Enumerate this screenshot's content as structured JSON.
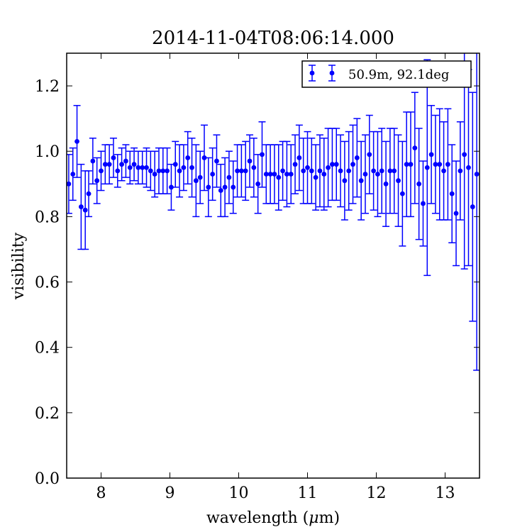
{
  "chart_data": {
    "type": "scatter",
    "title": "2014-11-04T08:06:14.000",
    "xlabel_text": "wavelength (",
    "xlabel_symbol": "μ",
    "xlabel_unit": "m)",
    "ylabel": "visibility",
    "xlim": [
      7.5,
      13.5
    ],
    "ylim": [
      0.0,
      1.3
    ],
    "xticks": [
      8,
      9,
      10,
      11,
      12,
      13
    ],
    "yticks": [
      0.0,
      0.2,
      0.4,
      0.6,
      0.8,
      1.0,
      1.2
    ],
    "xtick_labels": [
      "8",
      "9",
      "10",
      "11",
      "12",
      "13"
    ],
    "ytick_labels": [
      "0.0",
      "0.2",
      "0.4",
      "0.6",
      "0.8",
      "1.0",
      "1.2"
    ],
    "grid": false,
    "legend_position": "top-right",
    "color": "#0000ff",
    "series": [
      {
        "name": "50.9m, 92.1deg",
        "x": [
          7.53,
          7.59,
          7.65,
          7.71,
          7.77,
          7.82,
          7.88,
          7.94,
          8.0,
          8.06,
          8.12,
          8.18,
          8.24,
          8.3,
          8.36,
          8.42,
          8.48,
          8.54,
          8.6,
          8.66,
          8.72,
          8.78,
          8.84,
          8.9,
          8.96,
          9.02,
          9.08,
          9.14,
          9.2,
          9.26,
          9.32,
          9.38,
          9.44,
          9.5,
          9.56,
          9.62,
          9.68,
          9.74,
          9.8,
          9.86,
          9.92,
          9.98,
          10.04,
          10.1,
          10.16,
          10.22,
          10.28,
          10.34,
          10.4,
          10.46,
          10.52,
          10.58,
          10.64,
          10.7,
          10.76,
          10.82,
          10.88,
          10.94,
          11.0,
          11.06,
          11.12,
          11.18,
          11.24,
          11.3,
          11.36,
          11.42,
          11.48,
          11.54,
          11.6,
          11.66,
          11.72,
          11.78,
          11.84,
          11.9,
          11.96,
          12.02,
          12.08,
          12.14,
          12.2,
          12.26,
          12.32,
          12.38,
          12.44,
          12.5,
          12.56,
          12.62,
          12.68,
          12.74,
          12.8,
          12.86,
          12.92,
          12.98,
          13.04,
          13.1,
          13.16,
          13.22,
          13.28,
          13.34,
          13.4,
          13.46
        ],
        "y": [
          0.9,
          0.93,
          1.03,
          0.83,
          0.82,
          0.87,
          0.97,
          0.91,
          0.94,
          0.96,
          0.96,
          0.98,
          0.94,
          0.96,
          0.97,
          0.95,
          0.96,
          0.95,
          0.95,
          0.95,
          0.94,
          0.93,
          0.94,
          0.94,
          0.94,
          0.89,
          0.96,
          0.94,
          0.95,
          0.98,
          0.95,
          0.91,
          0.92,
          0.98,
          0.89,
          0.93,
          0.97,
          0.88,
          0.89,
          0.92,
          0.89,
          0.94,
          0.94,
          0.94,
          0.97,
          0.95,
          0.9,
          0.99,
          0.93,
          0.93,
          0.93,
          0.92,
          0.94,
          0.93,
          0.93,
          0.96,
          0.98,
          0.94,
          0.95,
          0.94,
          0.92,
          0.94,
          0.93,
          0.95,
          0.96,
          0.96,
          0.94,
          0.91,
          0.94,
          0.96,
          0.98,
          0.91,
          0.93,
          0.99,
          0.94,
          0.93,
          0.94,
          0.9,
          0.94,
          0.94,
          0.91,
          0.87,
          0.96,
          0.96,
          1.01,
          0.9,
          0.84,
          0.95,
          0.99,
          0.96,
          0.96,
          0.94,
          0.96,
          0.87,
          0.81,
          0.94,
          0.99,
          0.95,
          0.83,
          0.93
        ],
        "yerr": [
          0.09,
          0.08,
          0.11,
          0.13,
          0.12,
          0.07,
          0.07,
          0.07,
          0.06,
          0.06,
          0.06,
          0.06,
          0.05,
          0.05,
          0.05,
          0.05,
          0.05,
          0.05,
          0.05,
          0.06,
          0.06,
          0.07,
          0.07,
          0.07,
          0.07,
          0.07,
          0.07,
          0.08,
          0.07,
          0.08,
          0.09,
          0.11,
          0.08,
          0.1,
          0.09,
          0.08,
          0.08,
          0.08,
          0.09,
          0.08,
          0.08,
          0.08,
          0.08,
          0.09,
          0.08,
          0.09,
          0.09,
          0.1,
          0.09,
          0.09,
          0.09,
          0.1,
          0.09,
          0.1,
          0.09,
          0.09,
          0.1,
          0.1,
          0.11,
          0.1,
          0.1,
          0.11,
          0.11,
          0.12,
          0.11,
          0.11,
          0.11,
          0.12,
          0.12,
          0.12,
          0.12,
          0.12,
          0.12,
          0.12,
          0.12,
          0.13,
          0.13,
          0.13,
          0.13,
          0.13,
          0.14,
          0.16,
          0.16,
          0.16,
          0.17,
          0.17,
          0.13,
          0.33,
          0.15,
          0.15,
          0.17,
          0.15,
          0.17,
          0.15,
          0.16,
          0.15,
          0.35,
          0.3,
          0.35,
          0.6
        ]
      }
    ]
  }
}
